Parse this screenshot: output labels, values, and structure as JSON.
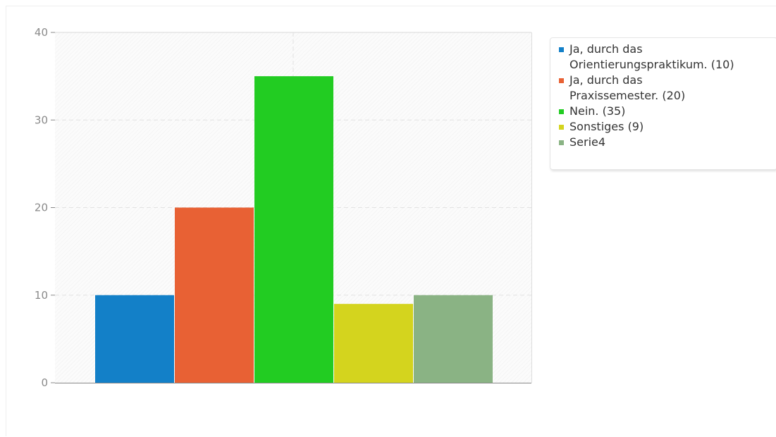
{
  "chart_data": {
    "type": "bar",
    "title": "",
    "xlabel": "",
    "ylabel": "",
    "ylim": [
      0,
      40
    ],
    "yticks": [
      0,
      10,
      20,
      30,
      40
    ],
    "grid": true,
    "legend_position": "right",
    "series": [
      {
        "name": "Ja, durch das\nOrientierungspraktikum. (10)",
        "value": 10,
        "color": "#1380c8"
      },
      {
        "name": "Ja, durch das\nPraxissemester. (20)",
        "value": 20,
        "color": "#e86134"
      },
      {
        "name": "Nein. (35)",
        "value": 35,
        "color": "#22cc22"
      },
      {
        "name": "Sonstiges (9)",
        "value": 9,
        "color": "#d4d41e"
      },
      {
        "name": "Serie4",
        "value": 10,
        "color": "#8ab384"
      }
    ]
  }
}
